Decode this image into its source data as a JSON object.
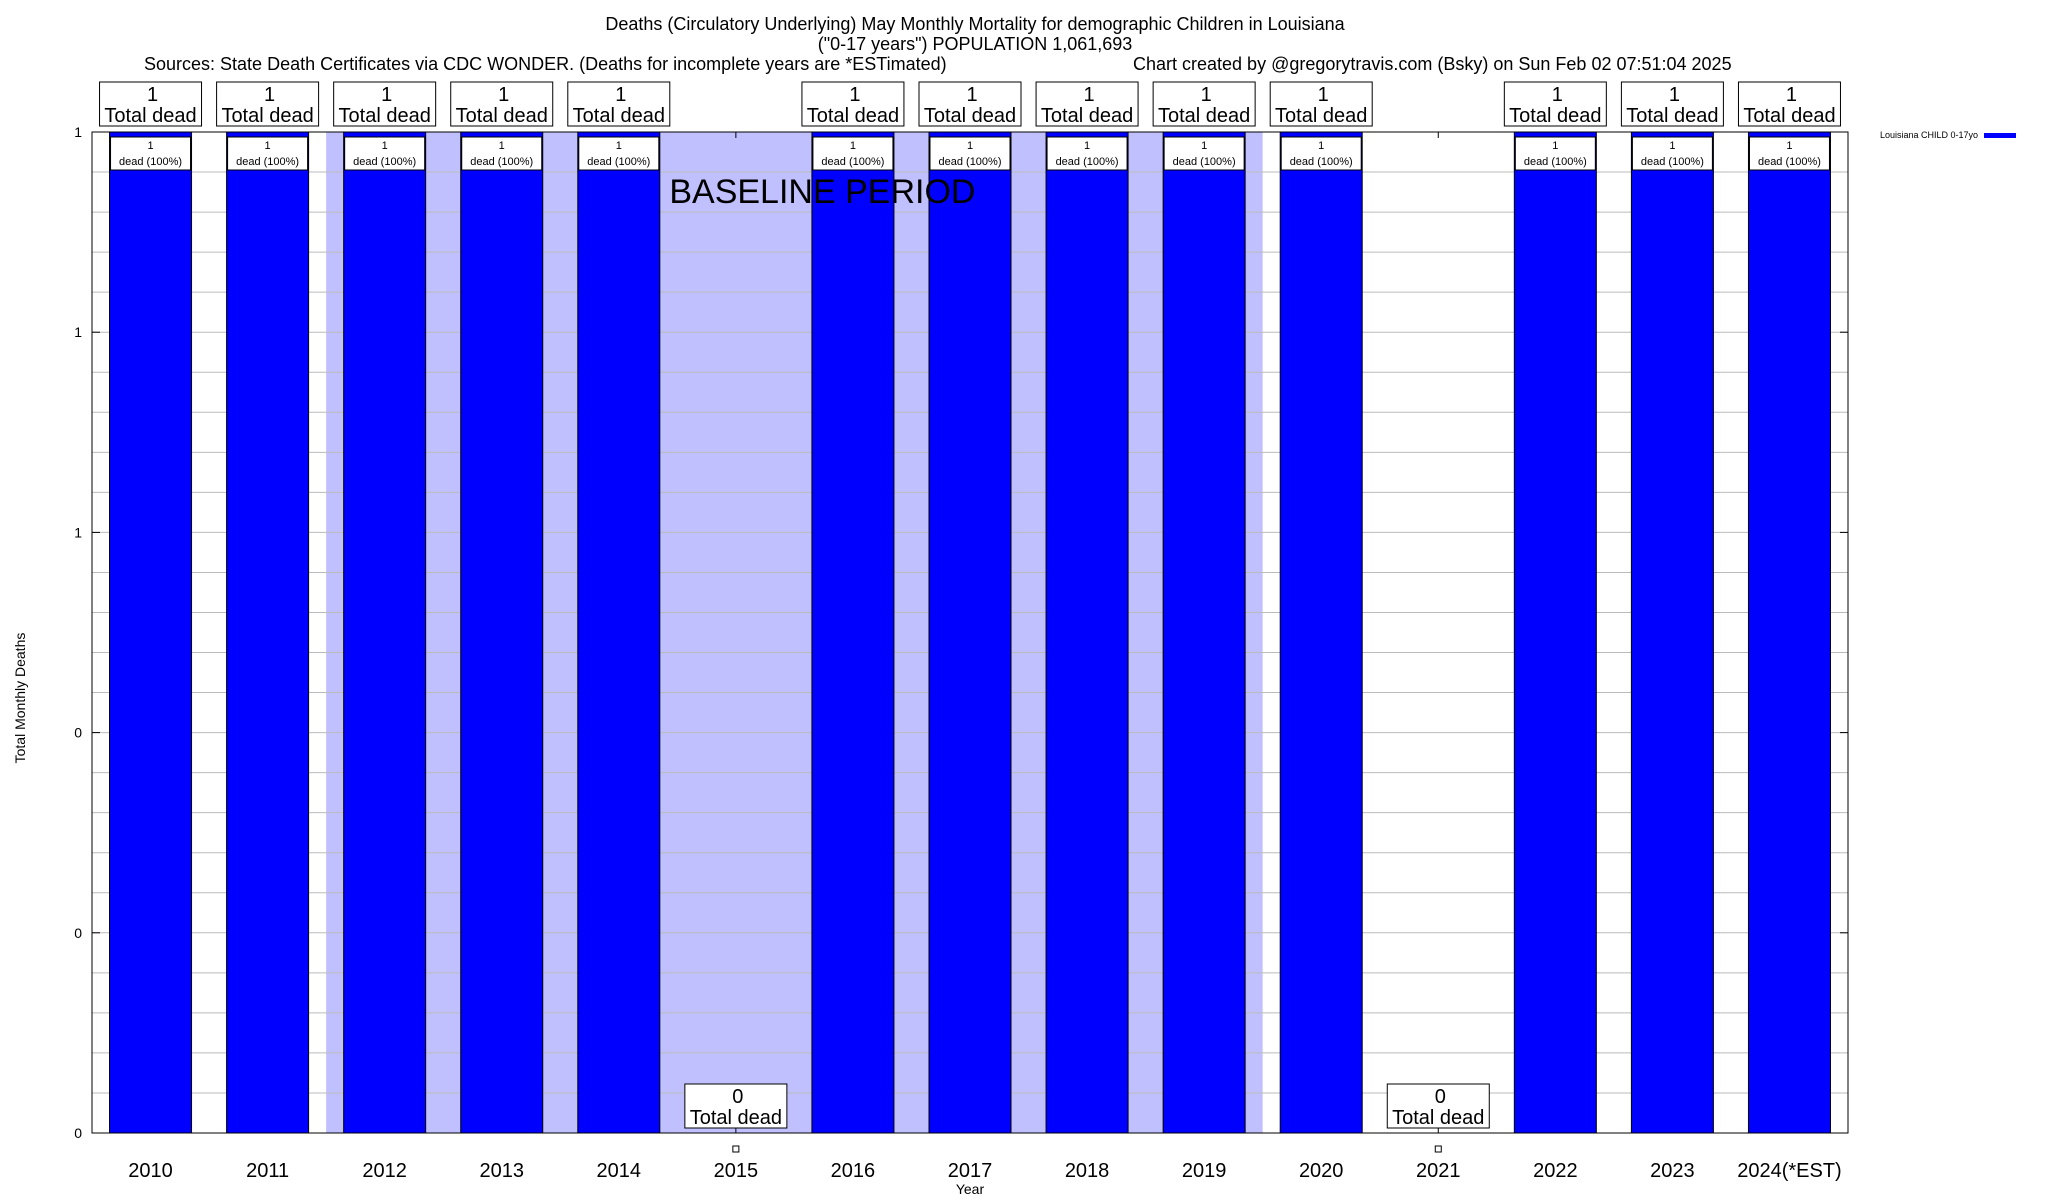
{
  "chart_data": {
    "type": "bar",
    "title_line1": "Deaths (Circulatory Underlying) May Monthly Mortality for demographic Children in Louisiana",
    "title_line2": "(\"0-17 years\") POPULATION 1,061,693",
    "sources": "Sources: State Death Certificates via CDC WONDER. (Deaths for incomplete years are *ESTimated)",
    "credit": "Chart created by @gregorytravis.com (Bsky) on Sun Feb 02 07:51:04 2025",
    "xlabel": "Year",
    "ylabel": "Total Monthly Deaths",
    "ylim": [
      0,
      1
    ],
    "y_tick_labels": [
      "0",
      "0",
      "0",
      "1",
      "1",
      "1"
    ],
    "categories": [
      "2010",
      "2011",
      "2012",
      "2013",
      "2014",
      "2015",
      "2016",
      "2017",
      "2018",
      "2019",
      "2020",
      "2021",
      "2022",
      "2023",
      "2024(*EST)"
    ],
    "series": [
      {
        "name": "Louisiana CHILD 0-17yo",
        "color": "#0000ff",
        "values": [
          1,
          1,
          1,
          1,
          1,
          0,
          1,
          1,
          1,
          1,
          1,
          0,
          1,
          1,
          1
        ]
      }
    ],
    "total_label": "Total dead",
    "bar_label_suffix": "dead (100%)",
    "baseline_label": "BASELINE PERIOD",
    "baseline_years": [
      "2012",
      "2019"
    ],
    "baseline_color": "#c0c0ff"
  }
}
